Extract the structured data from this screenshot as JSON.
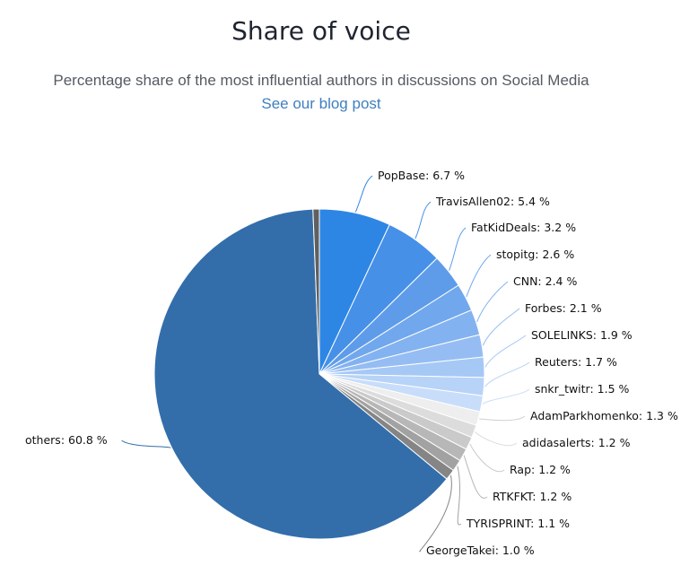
{
  "header": {
    "title": "Share of voice",
    "subtitle": "Percentage share of the most influential authors in discussions on Social Media",
    "link_label": "See our blog post"
  },
  "chart_data": {
    "type": "pie",
    "title": "Share of voice",
    "subtitle": "Percentage share of the most influential authors in discussions on Social Media",
    "start_angle_deg": 0,
    "direction": "clockwise",
    "unit": "%",
    "slices": [
      {
        "name": "PopBase",
        "value": 6.7,
        "label": "PopBase: 6.7 %",
        "color": "#2e86e4"
      },
      {
        "name": "TravisAllen02",
        "value": 5.4,
        "label": "TravisAllen02: 5.4 %",
        "color": "#4690e8"
      },
      {
        "name": "FatKidDeals",
        "value": 3.2,
        "label": "FatKidDeals: 3.2 %",
        "color": "#5e9cea"
      },
      {
        "name": "stopitg",
        "value": 2.6,
        "label": "stopitg: 2.6 %",
        "color": "#71a7ed"
      },
      {
        "name": "CNN",
        "value": 2.4,
        "label": "CNN: 2.4 %",
        "color": "#83b2f0"
      },
      {
        "name": "Forbes",
        "value": 2.1,
        "label": "Forbes: 2.1 %",
        "color": "#95bdf3"
      },
      {
        "name": "SOLELINKS",
        "value": 1.9,
        "label": "SOLELINKS: 1.9 %",
        "color": "#a6c8f5"
      },
      {
        "name": "Reuters",
        "value": 1.7,
        "label": "Reuters: 1.7 %",
        "color": "#b7d3f8"
      },
      {
        "name": "snkr_twitr",
        "value": 1.5,
        "label": "snkr_twitr: 1.5 %",
        "color": "#c8ddfa"
      },
      {
        "name": "AdamParkhomenko",
        "value": 1.3,
        "label": "AdamParkhomenko: 1.3 %",
        "color": "#eeeeee"
      },
      {
        "name": "adidasalerts",
        "value": 1.2,
        "label": "adidasalerts: 1.2 %",
        "color": "#dcdcdc"
      },
      {
        "name": "Rap",
        "value": 1.2,
        "label": "Rap: 1.2 %",
        "color": "#cacaca"
      },
      {
        "name": "RTKFKT",
        "value": 1.2,
        "label": "RTKFKT: 1.2 %",
        "color": "#b7b7b7"
      },
      {
        "name": "TYRISPRINT",
        "value": 1.1,
        "label": "TYRISPRINT: 1.1 %",
        "color": "#a2a2a2"
      },
      {
        "name": "GeorgeTakei",
        "value": 1.0,
        "label": "GeorgeTakei: 1.0 %",
        "color": "#858585"
      },
      {
        "name": "others",
        "value": 60.8,
        "label": "others: 60.8 %",
        "color": "#336eab"
      },
      {
        "name": "",
        "value": 0.6,
        "label": "",
        "color": "#606060"
      }
    ],
    "label_placement": "outside with connector lines",
    "legend": "none"
  }
}
